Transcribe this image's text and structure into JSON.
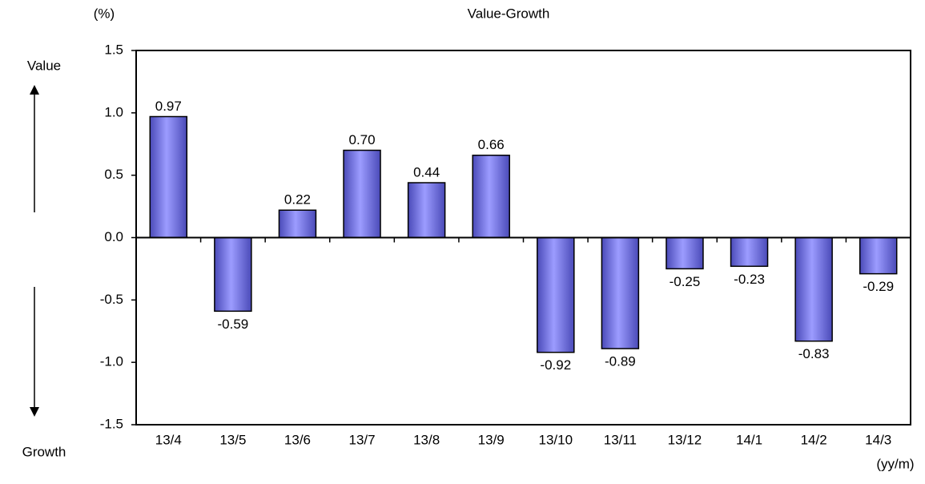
{
  "chart_data": {
    "type": "bar",
    "title": "Value-Growth",
    "y_unit": "(%)",
    "x_unit": "(yy/m)",
    "y_top_label": "Value",
    "y_bottom_label": "Growth",
    "categories": [
      "13/4",
      "13/5",
      "13/6",
      "13/7",
      "13/8",
      "13/9",
      "13/10",
      "13/11",
      "13/12",
      "14/1",
      "14/2",
      "14/3"
    ],
    "values": [
      0.97,
      -0.59,
      0.22,
      0.7,
      0.44,
      0.66,
      -0.92,
      -0.89,
      -0.25,
      -0.23,
      -0.83,
      -0.29
    ],
    "value_labels": [
      "0.97",
      "-0.59",
      "0.22",
      "0.70",
      "0.44",
      "0.66",
      "-0.92",
      "-0.89",
      "-0.25",
      "-0.23",
      "-0.83",
      "-0.29"
    ],
    "color": "#7b7bf0",
    "ylim": [
      -1.5,
      1.5
    ],
    "yticks": [
      {
        "value": 1.5,
        "label": "1.5"
      },
      {
        "value": 1,
        "label": "1.0"
      },
      {
        "value": 0.5,
        "label": "0.5"
      },
      {
        "value": 0,
        "label": "0.0"
      },
      {
        "value": -0.5,
        "label": "-0.5"
      },
      {
        "value": -1,
        "label": "-1.0"
      },
      {
        "value": -1.5,
        "label": "-1.5"
      }
    ],
    "grid": false
  }
}
